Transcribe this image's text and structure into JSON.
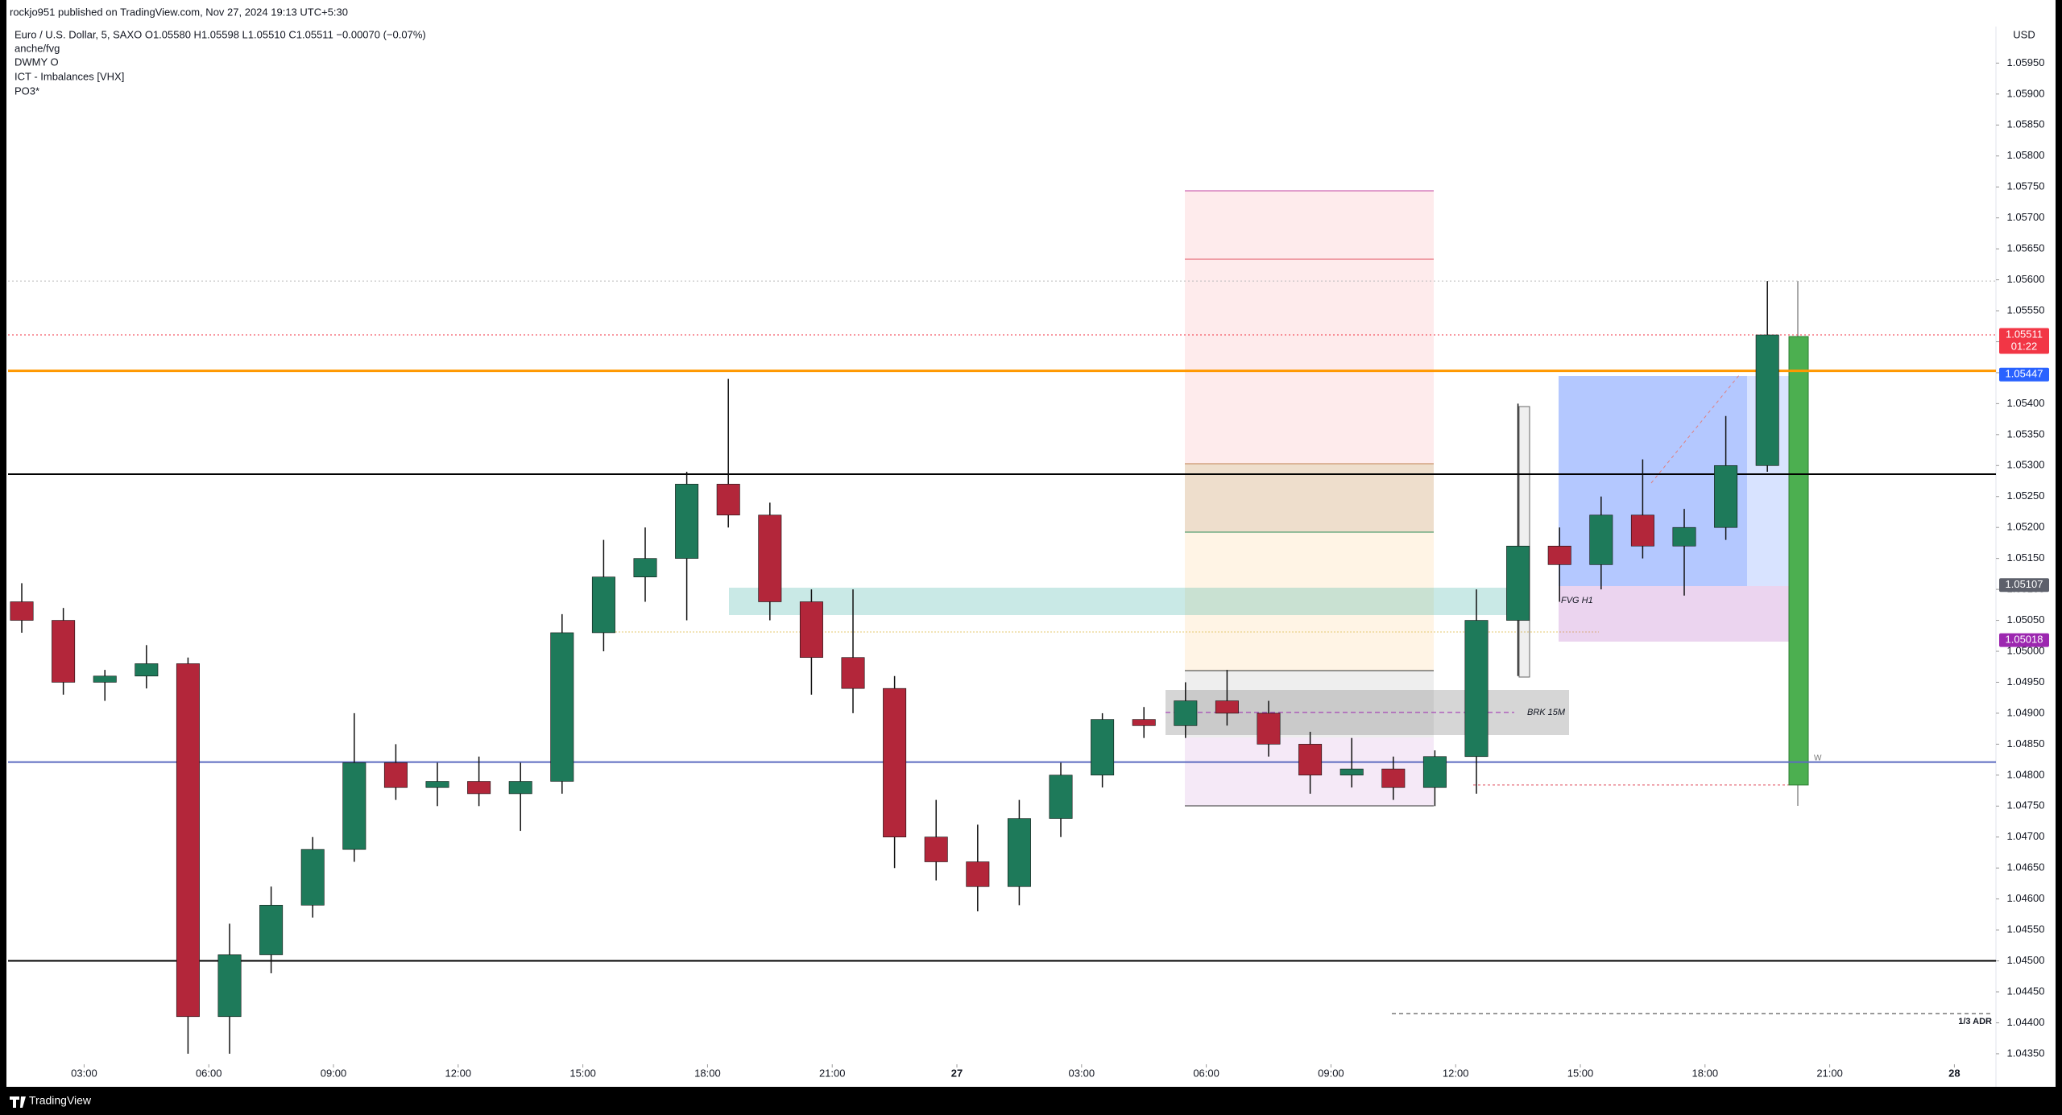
{
  "header": {
    "publisher": "rockjo951 published on TradingView.com, Nov 27, 2024 19:13 UTC+5:30"
  },
  "chart_data": {
    "type": "candlestick",
    "title": "Euro / U.S. Dollar, 5, SAXO  O1.05580  H1.05598  L1.05510  C1.05511  −0.00070 (−0.07%)",
    "indicators": [
      "anche/fvg",
      "DWMY O",
      "ICT - Imbalances [VHX]",
      "PO3*"
    ],
    "y_axis_label": "USD",
    "up_color": "#1e7a5a",
    "down_color": "#b3263a",
    "x": [
      1.5,
      2.5,
      3.5,
      4.5,
      5.5,
      6.5,
      7.5,
      8.5,
      9.5,
      10.5,
      11.5,
      12.5,
      13.5,
      14.5,
      15.5,
      16.5,
      17.5,
      18.5,
      19.5,
      20.5,
      21.5,
      22.5,
      23.5,
      24.5,
      25.5,
      26.5,
      27.5,
      28.5,
      29.5,
      30.5,
      31.5,
      32.5,
      33.5,
      34.5,
      35.5,
      36.5,
      37.5,
      38.5,
      39.5,
      40.5,
      41.5,
      42.5,
      43.5
    ],
    "open": [
      1.0508,
      1.0505,
      1.0495,
      1.0496,
      1.0498,
      1.0441,
      1.0451,
      1.0459,
      1.0468,
      1.0482,
      1.0478,
      1.0479,
      1.0477,
      1.0479,
      1.0503,
      1.0512,
      1.0515,
      1.0527,
      1.0522,
      1.0508,
      1.0499,
      1.0494,
      1.047,
      1.0466,
      1.0462,
      1.0473,
      1.048,
      1.0489,
      1.0488,
      1.0492,
      1.049,
      1.0485,
      1.048,
      1.0481,
      1.0478,
      1.0483,
      1.0505,
      1.0517,
      1.0514,
      1.0522,
      1.0517,
      1.052,
      1.053
    ],
    "high": [
      1.0511,
      1.0507,
      1.0497,
      1.0501,
      1.0499,
      1.0456,
      1.0462,
      1.047,
      1.049,
      1.0485,
      1.0482,
      1.0483,
      1.0482,
      1.0506,
      1.0518,
      1.052,
      1.0529,
      1.0544,
      1.0524,
      1.051,
      1.051,
      1.0496,
      1.0476,
      1.0472,
      1.0476,
      1.0482,
      1.049,
      1.0491,
      1.0495,
      1.0497,
      1.0492,
      1.0487,
      1.0486,
      1.0483,
      1.0484,
      1.051,
      1.054,
      1.052,
      1.0525,
      1.0531,
      1.0523,
      1.0538,
      1.05598
    ],
    "low": [
      1.0503,
      1.0493,
      1.0492,
      1.0494,
      1.0435,
      1.0435,
      1.0448,
      1.0457,
      1.0466,
      1.0476,
      1.0475,
      1.0475,
      1.0471,
      1.0477,
      1.05,
      1.0508,
      1.0505,
      1.052,
      1.0505,
      1.0493,
      1.049,
      1.0465,
      1.0463,
      1.0458,
      1.0459,
      1.047,
      1.0478,
      1.0486,
      1.0486,
      1.0488,
      1.0483,
      1.0477,
      1.0478,
      1.0476,
      1.0475,
      1.0477,
      1.0496,
      1.0508,
      1.051,
      1.0515,
      1.0509,
      1.0518,
      1.0529
    ],
    "close": [
      1.0505,
      1.0495,
      1.0496,
      1.0498,
      1.0441,
      1.0451,
      1.0459,
      1.0468,
      1.0482,
      1.0478,
      1.0479,
      1.0477,
      1.0479,
      1.0503,
      1.0512,
      1.0515,
      1.0527,
      1.0522,
      1.0508,
      1.0499,
      1.0494,
      1.047,
      1.0466,
      1.0462,
      1.0473,
      1.048,
      1.0489,
      1.0488,
      1.0492,
      1.049,
      1.0485,
      1.048,
      1.0481,
      1.0478,
      1.0483,
      1.0505,
      1.0517,
      1.0514,
      1.0522,
      1.0517,
      1.052,
      1.053,
      1.05511
    ],
    "xlim": [
      1.17,
      49.0
    ],
    "xticks": [
      {
        "value": 3,
        "label": "03:00"
      },
      {
        "value": 6,
        "label": "06:00"
      },
      {
        "value": 9,
        "label": "09:00"
      },
      {
        "value": 12,
        "label": "12:00"
      },
      {
        "value": 15,
        "label": "15:00"
      },
      {
        "value": 18,
        "label": "18:00"
      },
      {
        "value": 21,
        "label": "21:00"
      },
      {
        "value": 24,
        "label": "27"
      },
      {
        "value": 27,
        "label": "03:00"
      },
      {
        "value": 30,
        "label": "06:00"
      },
      {
        "value": 33,
        "label": "09:00"
      },
      {
        "value": 36,
        "label": "12:00"
      },
      {
        "value": 39,
        "label": "15:00"
      },
      {
        "value": 42,
        "label": "18:00"
      },
      {
        "value": 45,
        "label": "21:00"
      },
      {
        "value": 48,
        "label": "28"
      }
    ],
    "ylim": [
      1.04333,
      1.06009
    ],
    "yticks": [
      {
        "value": 1.0435,
        "label": "1.04350"
      },
      {
        "value": 1.044,
        "label": "1.04400"
      },
      {
        "value": 1.0445,
        "label": "1.04450"
      },
      {
        "value": 1.045,
        "label": "1.04500"
      },
      {
        "value": 1.0455,
        "label": "1.04550"
      },
      {
        "value": 1.046,
        "label": "1.04600"
      },
      {
        "value": 1.0465,
        "label": "1.04650"
      },
      {
        "value": 1.047,
        "label": "1.04700"
      },
      {
        "value": 1.0475,
        "label": "1.04750"
      },
      {
        "value": 1.048,
        "label": "1.04800"
      },
      {
        "value": 1.0485,
        "label": "1.04850"
      },
      {
        "value": 1.049,
        "label": "1.04900"
      },
      {
        "value": 1.0495,
        "label": "1.04950"
      },
      {
        "value": 1.05,
        "label": "1.05000"
      },
      {
        "value": 1.0505,
        "label": "1.05050"
      },
      {
        "value": 1.051,
        "label": "1.05100"
      },
      {
        "value": 1.0515,
        "label": "1.05150"
      },
      {
        "value": 1.052,
        "label": "1.05200"
      },
      {
        "value": 1.0525,
        "label": "1.05250"
      },
      {
        "value": 1.053,
        "label": "1.05300"
      },
      {
        "value": 1.0535,
        "label": "1.05350"
      },
      {
        "value": 1.054,
        "label": "1.05400"
      },
      {
        "value": 1.0545,
        "label": "1.05450"
      },
      {
        "value": 1.055,
        "label": "1.05500"
      },
      {
        "value": 1.0555,
        "label": "1.05550"
      },
      {
        "value": 1.056,
        "label": "1.05600"
      },
      {
        "value": 1.0565,
        "label": "1.05650"
      },
      {
        "value": 1.057,
        "label": "1.05700"
      },
      {
        "value": 1.0575,
        "label": "1.05750"
      },
      {
        "value": 1.058,
        "label": "1.05800"
      },
      {
        "value": 1.0585,
        "label": "1.05850"
      },
      {
        "value": 1.059,
        "label": "1.05900"
      },
      {
        "value": 1.0595,
        "label": "1.05950"
      }
    ],
    "hlines": [
      {
        "value": 1.05598,
        "color": "#bbbbbb"
      },
      {
        "value": 1.05511,
        "color": "#f23645"
      },
      {
        "value": 1.05453,
        "color": "#ff9800"
      },
      {
        "value": 1.05286,
        "color": "#000000"
      },
      {
        "value": 1.04821,
        "color": "#5c6bc0"
      },
      {
        "value": 1.045,
        "color": "#000000"
      }
    ],
    "price_labels": [
      {
        "value": 1.05511,
        "countdown": "01:22",
        "color": "#f23645"
      },
      {
        "value": 1.05447,
        "color": "#2962ff"
      },
      {
        "value": 1.05107,
        "color": "#5d606b"
      },
      {
        "value": 1.05018,
        "color": "#9c27b0"
      }
    ],
    "annotations": [
      "FVG H1",
      "BRK 15M",
      "1/3 ADR",
      "W"
    ]
  },
  "footer": {
    "brand": "TradingView"
  }
}
